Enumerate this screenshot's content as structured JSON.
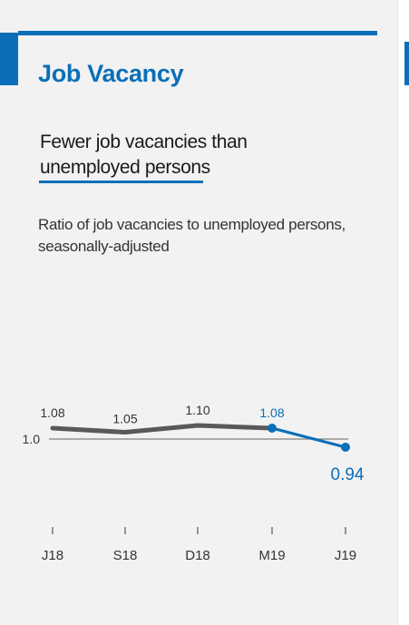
{
  "title": "Job Vacancy",
  "headline": "Fewer job vacancies than unemployed persons",
  "subtitle": "Ratio of job vacancies to unemployed persons, seasonally-adjusted",
  "colors": {
    "accent": "#0a6fb8",
    "series": "#595959",
    "highlight": "#0a6fb8",
    "panel": "#f2f2f2"
  },
  "chart_data": {
    "type": "line",
    "title": "",
    "xlabel": "",
    "ylabel": "",
    "categories": [
      "J18",
      "S18",
      "D18",
      "M19",
      "J19"
    ],
    "series": [
      {
        "values": [
          1.08,
          1.05,
          1.1,
          1.08,
          0.94
        ]
      }
    ],
    "labels": [
      "1.08",
      "1.05",
      "1.10",
      "1.08",
      "0.94"
    ],
    "highlight_from_index": 3,
    "reference_line": {
      "value": 1.0,
      "label": "1.0"
    },
    "ylim": [
      0.9,
      1.2
    ],
    "grid": false,
    "legend": "none"
  }
}
